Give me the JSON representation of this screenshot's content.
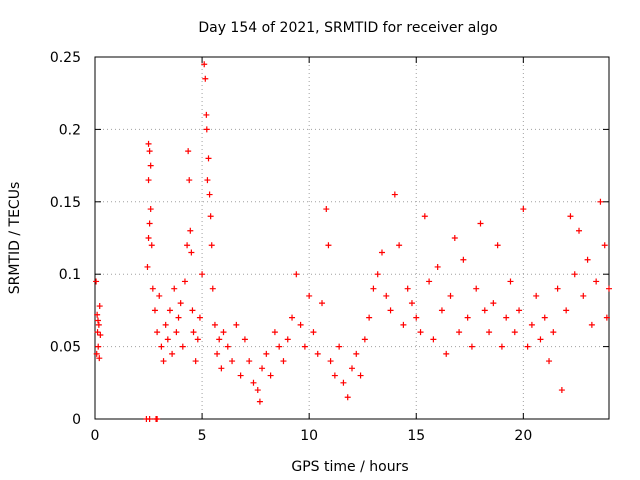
{
  "chart_data": {
    "type": "scatter",
    "title": "Day 154 of 2021, SRMTID for receiver algo",
    "xlabel": "GPS time / hours",
    "ylabel": "SRMTID / TECUs",
    "xlim": [
      0,
      24
    ],
    "ylim": [
      0,
      0.25
    ],
    "xticks": [
      0,
      5,
      10,
      15,
      20
    ],
    "xtick_labels": [
      "0",
      "5",
      "10",
      "15",
      "20"
    ],
    "yticks": [
      0,
      0.05,
      0.1,
      0.15,
      0.2,
      0.25
    ],
    "ytick_labels": [
      "0",
      "0.05",
      "0.1",
      "0.15",
      "0.2",
      "0.25"
    ],
    "grid": true,
    "marker": "+",
    "color": "#ff0000",
    "series": [
      {
        "name": "SRMTID",
        "points": [
          [
            0.05,
            0.095
          ],
          [
            0.1,
            0.072
          ],
          [
            0.12,
            0.06
          ],
          [
            0.15,
            0.05
          ],
          [
            0.18,
            0.065
          ],
          [
            0.2,
            0.042
          ],
          [
            0.22,
            0.078
          ],
          [
            0.25,
            0.058
          ],
          [
            0.08,
            0.045
          ],
          [
            0.14,
            0.068
          ],
          [
            2.4,
            0.0
          ],
          [
            2.55,
            0.0
          ],
          [
            2.85,
            0.0
          ],
          [
            2.9,
            0.0
          ],
          [
            2.5,
            0.19
          ],
          [
            2.55,
            0.185
          ],
          [
            2.6,
            0.175
          ],
          [
            2.5,
            0.165
          ],
          [
            2.6,
            0.145
          ],
          [
            2.55,
            0.135
          ],
          [
            2.5,
            0.125
          ],
          [
            2.65,
            0.12
          ],
          [
            2.45,
            0.105
          ],
          [
            2.7,
            0.09
          ],
          [
            2.8,
            0.075
          ],
          [
            2.9,
            0.06
          ],
          [
            3.0,
            0.085
          ],
          [
            3.1,
            0.05
          ],
          [
            3.2,
            0.04
          ],
          [
            3.3,
            0.065
          ],
          [
            3.4,
            0.055
          ],
          [
            3.5,
            0.075
          ],
          [
            3.6,
            0.045
          ],
          [
            3.7,
            0.09
          ],
          [
            3.8,
            0.06
          ],
          [
            3.9,
            0.07
          ],
          [
            4.0,
            0.08
          ],
          [
            4.1,
            0.05
          ],
          [
            4.2,
            0.095
          ],
          [
            4.3,
            0.12
          ],
          [
            4.35,
            0.185
          ],
          [
            4.4,
            0.165
          ],
          [
            4.45,
            0.13
          ],
          [
            4.5,
            0.115
          ],
          [
            4.55,
            0.075
          ],
          [
            4.6,
            0.06
          ],
          [
            4.7,
            0.04
          ],
          [
            4.8,
            0.055
          ],
          [
            4.9,
            0.07
          ],
          [
            5.0,
            0.1
          ],
          [
            5.1,
            0.245
          ],
          [
            5.15,
            0.235
          ],
          [
            5.2,
            0.21
          ],
          [
            5.22,
            0.2
          ],
          [
            5.25,
            0.165
          ],
          [
            5.3,
            0.18
          ],
          [
            5.35,
            0.155
          ],
          [
            5.4,
            0.14
          ],
          [
            5.45,
            0.12
          ],
          [
            5.5,
            0.09
          ],
          [
            5.6,
            0.065
          ],
          [
            5.7,
            0.045
          ],
          [
            5.8,
            0.055
          ],
          [
            5.9,
            0.035
          ],
          [
            6.0,
            0.06
          ],
          [
            6.2,
            0.05
          ],
          [
            6.4,
            0.04
          ],
          [
            6.6,
            0.065
          ],
          [
            6.8,
            0.03
          ],
          [
            7.0,
            0.055
          ],
          [
            7.2,
            0.04
          ],
          [
            7.4,
            0.025
          ],
          [
            7.6,
            0.02
          ],
          [
            7.7,
            0.012
          ],
          [
            7.8,
            0.035
          ],
          [
            8.0,
            0.045
          ],
          [
            8.2,
            0.03
          ],
          [
            8.4,
            0.06
          ],
          [
            8.6,
            0.05
          ],
          [
            8.8,
            0.04
          ],
          [
            9.0,
            0.055
          ],
          [
            9.2,
            0.07
          ],
          [
            9.4,
            0.1
          ],
          [
            9.6,
            0.065
          ],
          [
            9.8,
            0.05
          ],
          [
            10.0,
            0.085
          ],
          [
            10.2,
            0.06
          ],
          [
            10.4,
            0.045
          ],
          [
            10.6,
            0.08
          ],
          [
            10.8,
            0.145
          ],
          [
            10.9,
            0.12
          ],
          [
            11.0,
            0.04
          ],
          [
            11.2,
            0.03
          ],
          [
            11.4,
            0.05
          ],
          [
            11.6,
            0.025
          ],
          [
            11.8,
            0.015
          ],
          [
            12.0,
            0.035
          ],
          [
            12.2,
            0.045
          ],
          [
            12.4,
            0.03
          ],
          [
            12.6,
            0.055
          ],
          [
            12.8,
            0.07
          ],
          [
            13.0,
            0.09
          ],
          [
            13.2,
            0.1
          ],
          [
            13.4,
            0.115
          ],
          [
            13.6,
            0.085
          ],
          [
            13.8,
            0.075
          ],
          [
            14.0,
            0.155
          ],
          [
            14.2,
            0.12
          ],
          [
            14.4,
            0.065
          ],
          [
            14.6,
            0.09
          ],
          [
            14.8,
            0.08
          ],
          [
            15.0,
            0.07
          ],
          [
            15.2,
            0.06
          ],
          [
            15.4,
            0.14
          ],
          [
            15.6,
            0.095
          ],
          [
            15.8,
            0.055
          ],
          [
            16.0,
            0.105
          ],
          [
            16.2,
            0.075
          ],
          [
            16.4,
            0.045
          ],
          [
            16.6,
            0.085
          ],
          [
            16.8,
            0.125
          ],
          [
            17.0,
            0.06
          ],
          [
            17.2,
            0.11
          ],
          [
            17.4,
            0.07
          ],
          [
            17.6,
            0.05
          ],
          [
            17.8,
            0.09
          ],
          [
            18.0,
            0.135
          ],
          [
            18.2,
            0.075
          ],
          [
            18.4,
            0.06
          ],
          [
            18.6,
            0.08
          ],
          [
            18.8,
            0.12
          ],
          [
            19.0,
            0.05
          ],
          [
            19.2,
            0.07
          ],
          [
            19.4,
            0.095
          ],
          [
            19.6,
            0.06
          ],
          [
            19.8,
            0.075
          ],
          [
            20.0,
            0.145
          ],
          [
            20.2,
            0.05
          ],
          [
            20.4,
            0.065
          ],
          [
            20.6,
            0.085
          ],
          [
            20.8,
            0.055
          ],
          [
            21.0,
            0.07
          ],
          [
            21.2,
            0.04
          ],
          [
            21.4,
            0.06
          ],
          [
            21.6,
            0.09
          ],
          [
            21.8,
            0.02
          ],
          [
            22.0,
            0.075
          ],
          [
            22.2,
            0.14
          ],
          [
            22.4,
            0.1
          ],
          [
            22.6,
            0.13
          ],
          [
            22.8,
            0.085
          ],
          [
            23.0,
            0.11
          ],
          [
            23.2,
            0.065
          ],
          [
            23.4,
            0.095
          ],
          [
            23.6,
            0.15
          ],
          [
            23.8,
            0.12
          ],
          [
            23.9,
            0.07
          ],
          [
            24.0,
            0.09
          ]
        ]
      }
    ]
  }
}
